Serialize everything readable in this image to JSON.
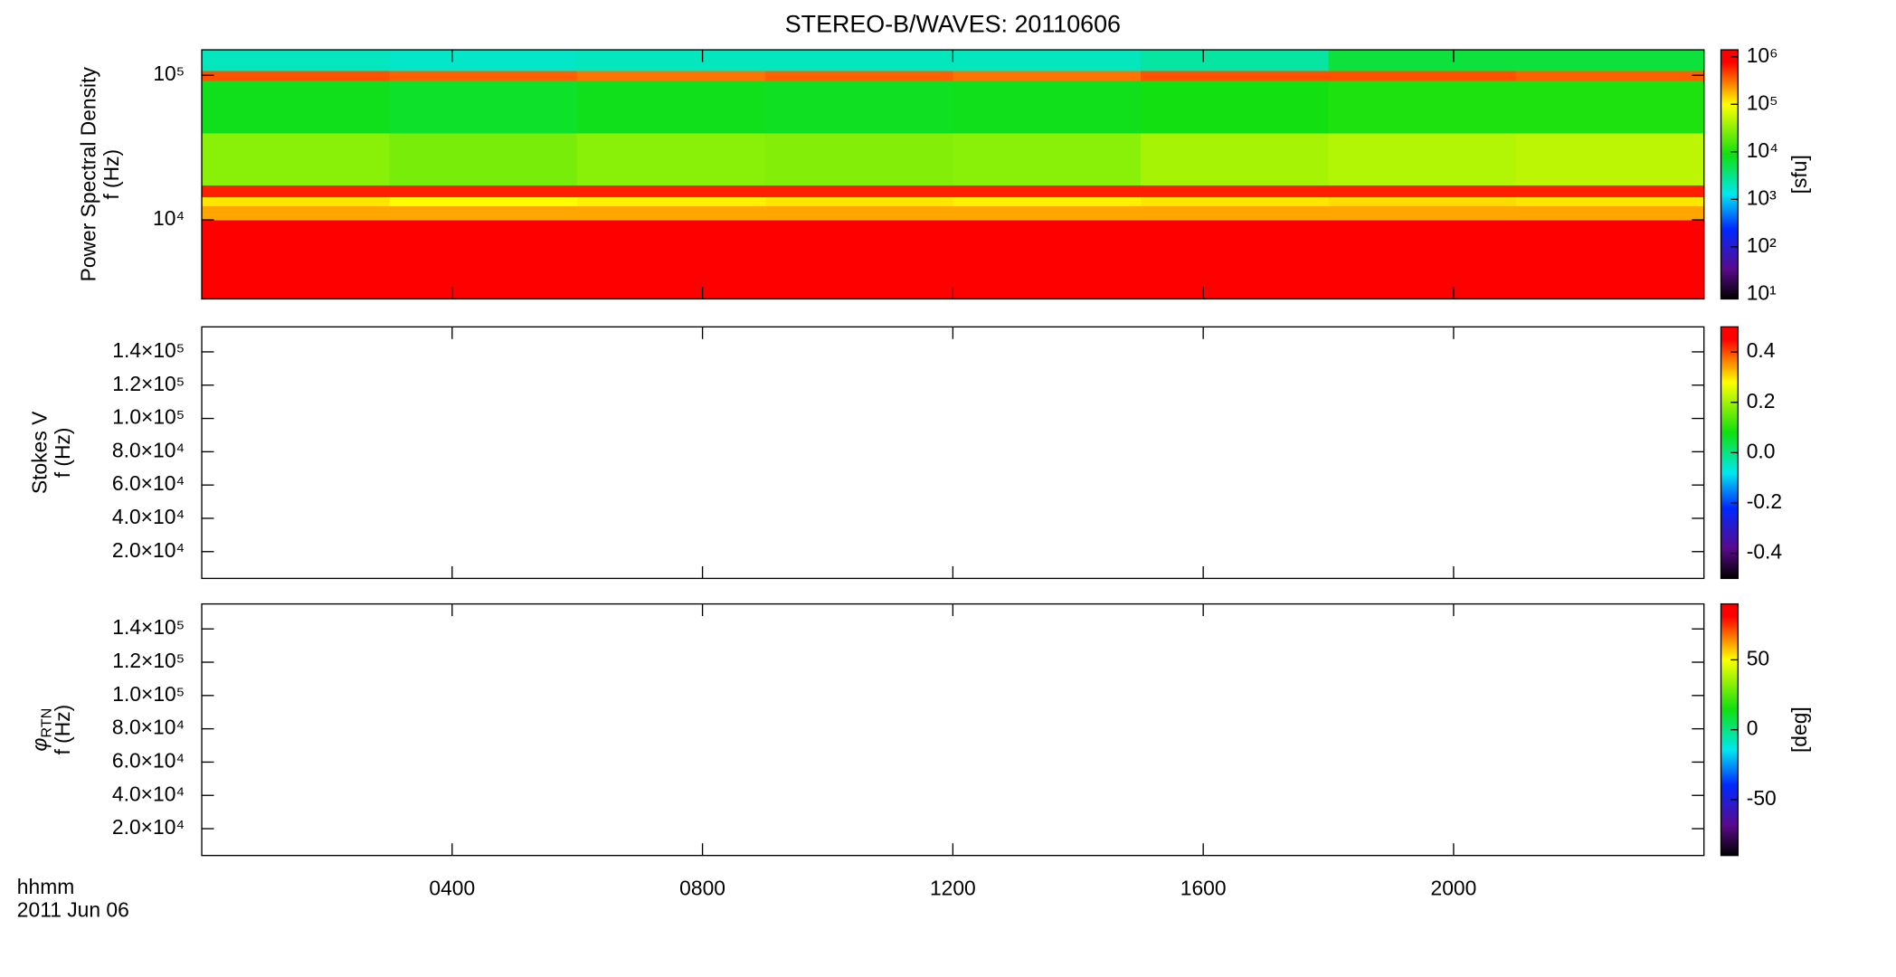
{
  "chart_data": [
    {
      "type": "heatmap",
      "title": "STEREO-B/WAVES: 20110606",
      "ylabel": "Power Spectral Density",
      "ylabel2": "f (Hz)",
      "yscale": "log",
      "ylim": [
        2840,
        150000
      ],
      "yticks": [
        {
          "value": 10000,
          "label": "10⁴"
        },
        {
          "value": 100000,
          "label": "10⁵"
        }
      ],
      "xlim": [
        0,
        24
      ],
      "xticks": [
        4,
        8,
        12,
        16,
        20
      ],
      "x_edges": [
        0,
        3,
        6,
        9,
        12,
        15,
        18,
        21,
        24
      ],
      "y_edges": [
        2840,
        10000,
        12500,
        14500,
        17500,
        40000,
        92000,
        108000,
        150000
      ],
      "z": [
        [
          900000,
          900000,
          900000,
          900000,
          900000,
          900000,
          900000,
          900000
        ],
        [
          200000,
          200000,
          200000,
          200000,
          200000,
          200000,
          200000,
          200000
        ],
        [
          120000,
          100000,
          110000,
          120000,
          110000,
          120000,
          130000,
          120000
        ],
        [
          600000,
          600000,
          600000,
          600000,
          600000,
          600000,
          600000,
          600000
        ],
        [
          30000,
          25000,
          30000,
          28000,
          30000,
          40000,
          45000,
          50000
        ],
        [
          8000,
          7000,
          8000,
          7500,
          8000,
          9000,
          10000,
          10000
        ],
        [
          400000,
          350000,
          300000,
          350000,
          300000,
          400000,
          400000,
          350000
        ],
        [
          2000,
          1800,
          2000,
          2000,
          2000,
          2500,
          6000,
          6000
        ]
      ],
      "cscale": "log",
      "clim": [
        8,
        1400000
      ],
      "cticks": [
        {
          "value": 10,
          "label": "10¹"
        },
        {
          "value": 100,
          "label": "10²"
        },
        {
          "value": 1000,
          "label": "10³"
        },
        {
          "value": 10000,
          "label": "10⁴"
        },
        {
          "value": 100000,
          "label": "10⁵"
        },
        {
          "value": 1000000,
          "label": "10⁶"
        }
      ],
      "clabel": "[sfu]",
      "colormap": [
        {
          "at": 0,
          "color": "#000000"
        },
        {
          "at": 0.12,
          "color": "#5a0a8c"
        },
        {
          "at": 0.28,
          "color": "#0028ff"
        },
        {
          "at": 0.42,
          "color": "#00e8f0"
        },
        {
          "at": 0.58,
          "color": "#10e010"
        },
        {
          "at": 0.78,
          "color": "#ffff00"
        },
        {
          "at": 0.95,
          "color": "#ff0000"
        },
        {
          "at": 1,
          "color": "#ff0000"
        }
      ]
    },
    {
      "type": "heatmap",
      "ylabel": "Stokes V",
      "ylabel2": "f (Hz)",
      "yscale": "linear",
      "ylim": [
        3900,
        155000
      ],
      "yticks": [
        {
          "value": 20000,
          "label": "2.0×10⁴"
        },
        {
          "value": 40000,
          "label": "4.0×10⁴"
        },
        {
          "value": 60000,
          "label": "6.0×10⁴"
        },
        {
          "value": 80000,
          "label": "8.0×10⁴"
        },
        {
          "value": 100000,
          "label": "1.0×10⁵"
        },
        {
          "value": 120000,
          "label": "1.2×10⁵"
        },
        {
          "value": 140000,
          "label": "1.4×10⁵"
        }
      ],
      "xlim": [
        0,
        24
      ],
      "xticks": [
        4,
        8,
        12,
        16,
        20
      ],
      "cscale": "linear",
      "clim": [
        -0.5,
        0.5
      ],
      "cticks": [
        -0.4,
        -0.2,
        {
          "value": 0,
          "label": "0.0"
        },
        0.2,
        0.4
      ],
      "colormap": [
        {
          "at": 0,
          "color": "#000000"
        },
        {
          "at": 0.12,
          "color": "#5a0a8c"
        },
        {
          "at": 0.28,
          "color": "#0028ff"
        },
        {
          "at": 0.42,
          "color": "#00e8f0"
        },
        {
          "at": 0.58,
          "color": "#10e010"
        },
        {
          "at": 0.78,
          "color": "#ffff00"
        },
        {
          "at": 0.95,
          "color": "#ff0000"
        },
        {
          "at": 1,
          "color": "#ff0000"
        }
      ]
    },
    {
      "type": "heatmap",
      "ylabel_symbol": "φ",
      "ylabel_subscript": "RTN",
      "ylabel2": "f (Hz)",
      "yscale": "linear",
      "ylim": [
        3900,
        155000
      ],
      "yticks": [
        {
          "value": 20000,
          "label": "2.0×10⁴"
        },
        {
          "value": 40000,
          "label": "4.0×10⁴"
        },
        {
          "value": 60000,
          "label": "6.0×10⁴"
        },
        {
          "value": 80000,
          "label": "8.0×10⁴"
        },
        {
          "value": 100000,
          "label": "1.0×10⁵"
        },
        {
          "value": 120000,
          "label": "1.2×10⁵"
        },
        {
          "value": 140000,
          "label": "1.4×10⁵"
        }
      ],
      "xlim": [
        0,
        24
      ],
      "xticks": [
        {
          "value": 4,
          "label": "0400"
        },
        {
          "value": 8,
          "label": "0800"
        },
        {
          "value": 12,
          "label": "1200"
        },
        {
          "value": 16,
          "label": "1600"
        },
        {
          "value": 20,
          "label": "2000"
        }
      ],
      "xlabel": "hhmm",
      "date": "2011 Jun 06",
      "cscale": "linear",
      "clim": [
        -90,
        90
      ],
      "cticks": [
        -50,
        0,
        50
      ],
      "clabel": "[deg]",
      "colormap": [
        {
          "at": 0,
          "color": "#000000"
        },
        {
          "at": 0.12,
          "color": "#5a0a8c"
        },
        {
          "at": 0.28,
          "color": "#0028ff"
        },
        {
          "at": 0.42,
          "color": "#00e8f0"
        },
        {
          "at": 0.58,
          "color": "#10e010"
        },
        {
          "at": 0.78,
          "color": "#ffff00"
        },
        {
          "at": 0.95,
          "color": "#ff0000"
        },
        {
          "at": 1,
          "color": "#ff0000"
        }
      ]
    }
  ]
}
